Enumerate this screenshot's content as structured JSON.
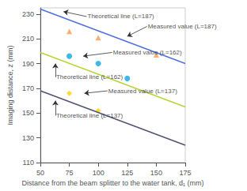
{
  "chart_data": {
    "type": "line",
    "xlabel": "Distance from the beam splitter to the water tank, d₁ (mm)",
    "ylabel": "Imaging distance, z (mm)",
    "xlim": [
      50,
      175
    ],
    "ylim": [
      110,
      235
    ],
    "xticks": [
      50,
      75,
      100,
      125,
      150,
      175
    ],
    "yticks": [
      110,
      130,
      150,
      170,
      190,
      210,
      230
    ],
    "grid": false,
    "series": [
      {
        "type": "line",
        "x": [
          50,
          175
        ],
        "values": [
          234,
          190
        ]
      },
      {
        "type": "line",
        "x": [
          50,
          175
        ],
        "values": [
          199,
          155
        ]
      },
      {
        "type": "line",
        "x": [
          50,
          175
        ],
        "values": [
          168,
          124
        ]
      },
      {
        "type": "scatter",
        "marker": "triangle",
        "x": [
          75,
          100,
          150
        ],
        "values": [
          216,
          211,
          197
        ]
      },
      {
        "type": "scatter",
        "marker": "circle",
        "x": [
          75,
          100,
          125
        ],
        "values": [
          196,
          190,
          178
        ]
      },
      {
        "type": "scatter",
        "marker": "diamond",
        "x": [
          75,
          100
        ],
        "values": [
          166,
          152
        ]
      }
    ],
    "annotations": [
      {
        "text": "Theoretical line (L=187)",
        "x": 70,
        "y": 232,
        "text_x": 90,
        "text_y": 228
      },
      {
        "text": "Measured value (L=187)",
        "x": 125,
        "y": 212,
        "text_x": 142,
        "text_y": 220
      },
      {
        "text": "Measured value (L=162)",
        "x": 87,
        "y": 196,
        "text_x": 112,
        "text_y": 199
      },
      {
        "text": "Theoretical line (L=162)",
        "x": 63,
        "y": 190,
        "text_x": 63,
        "text_y": 179
      },
      {
        "text": "Measured value (L=137)",
        "x": 88,
        "y": 166,
        "text_x": 108,
        "text_y": 168
      },
      {
        "text": "Theoretical line (L=137)",
        "x": 63,
        "y": 160,
        "text_x": 63,
        "text_y": 148
      }
    ]
  }
}
